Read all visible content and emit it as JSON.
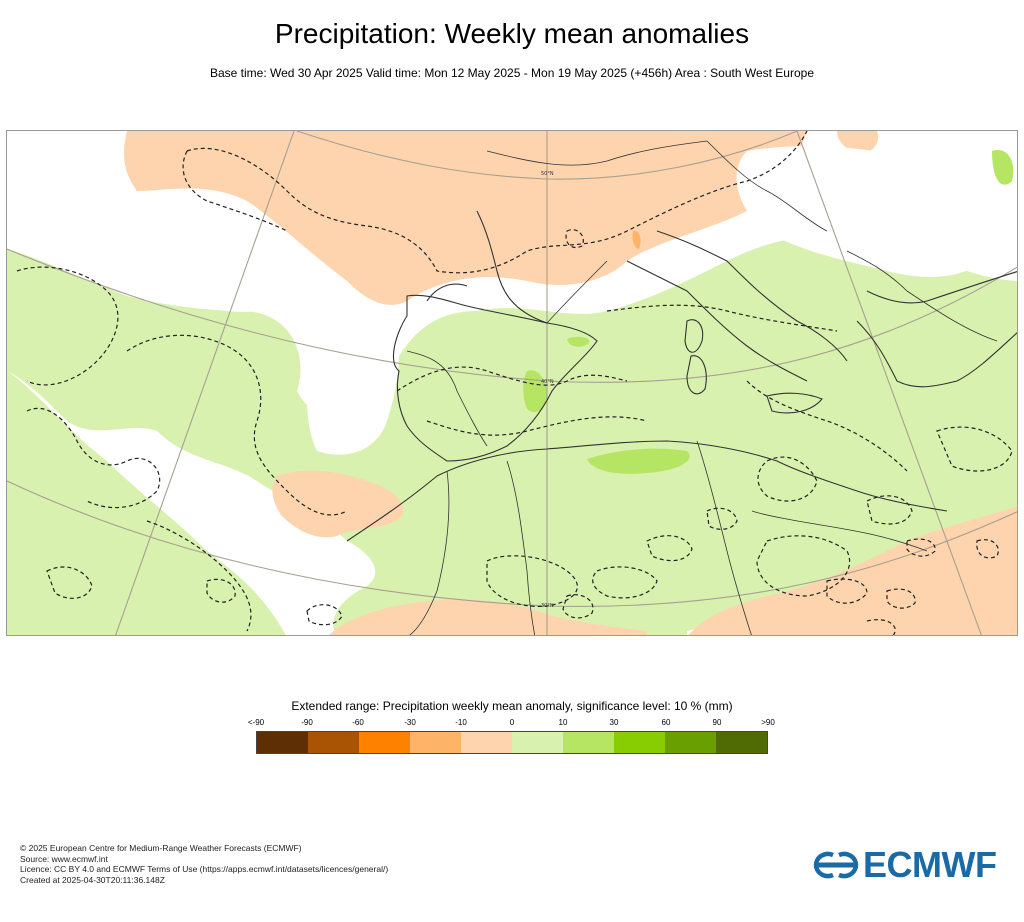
{
  "header": {
    "title": "Precipitation: Weekly mean anomalies",
    "subtitle": "Base time: Wed 30 Apr 2025 Valid time: Mon 12 May 2025 - Mon 19 May 2025 (+456h) Area : South West Europe"
  },
  "map": {
    "area": "South West Europe",
    "graticule_labels": [
      "50°N",
      "40°N",
      "30°N"
    ],
    "colors": {
      "coast": "#333333",
      "graticule": "#a89f92",
      "contour": "#222222"
    }
  },
  "legend": {
    "title": "Extended range: Precipitation weekly mean anomaly, significance level: 10 % (mm)",
    "labels": [
      "<-90",
      "-90",
      "-60",
      "-30",
      "-10",
      "0",
      "10",
      "30",
      "60",
      "90",
      ">90"
    ],
    "colors": [
      "#5e2e05",
      "#a85404",
      "#fe8100",
      "#fdb468",
      "#fdd4ae",
      "#d9f1ae",
      "#b5e563",
      "#87cd01",
      "#6a9f02",
      "#506b03"
    ]
  },
  "footer": {
    "lines": [
      "© 2025 European Centre for Medium-Range Weather Forecasts (ECMWF)",
      "Source: www.ecmwf.int",
      "Licence: CC BY 4.0 and ECMWF Terms of Use (https://apps.ecmwf.int/datasets/licences/general/)",
      "Created at 2025-04-30T20:11:36.148Z"
    ]
  },
  "logo": {
    "text": "ECMWF",
    "color": "#1a6aa5"
  }
}
